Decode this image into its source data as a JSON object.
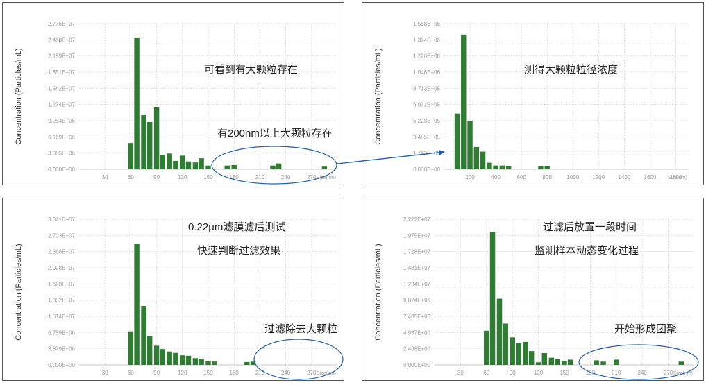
{
  "chart_data": [
    {
      "type": "bar",
      "ylabel": "Concentration (Particles/mL)",
      "x_unit_label": "Size(nm)",
      "x_ticks": [
        "30",
        "60",
        "90",
        "120",
        "150",
        "180",
        "210",
        "240",
        "270"
      ],
      "x_range": [
        0,
        300
      ],
      "y_ticks": [
        "0.000E+00",
        "3.085E+06",
        "6.169E+06",
        "9.254E+06",
        "1.234E+07",
        "1.542E+07",
        "1.851E+07",
        "2.159E+07",
        "2.468E+07",
        "2.776E+07"
      ],
      "ylim": [
        0,
        27760000
      ],
      "bar_width_nm": 6,
      "x": [
        60,
        67,
        75,
        82,
        90,
        97,
        105,
        112,
        120,
        127,
        135,
        142,
        150,
        157,
        165,
        172,
        180,
        187,
        195,
        202,
        210,
        217,
        225,
        232,
        240,
        247,
        255,
        262,
        270,
        277,
        285
      ],
      "values": [
        5000000,
        25000000,
        10300000,
        9000000,
        11900000,
        2700000,
        3000000,
        1600000,
        2600000,
        1500000,
        1300000,
        2100000,
        700000,
        0,
        0,
        700000,
        800000,
        0,
        0,
        0,
        0,
        0,
        700000,
        1100000,
        0,
        0,
        0,
        0,
        0,
        0,
        500000
      ],
      "annotations": [
        "可看到有大颗粒存在",
        "有200nm以上大颗粒存在"
      ]
    },
    {
      "type": "bar",
      "ylabel": "Concentration (Particles/mL)",
      "x_unit_label": "Size(nm)",
      "x_ticks": [
        "200",
        "400",
        "600",
        "800",
        "1000",
        "1200",
        "1400",
        "1600",
        "1800"
      ],
      "x_range": [
        0,
        1900
      ],
      "y_ticks": [
        "0.000E+00",
        "1.743E+05",
        "3.485E+05",
        "5.228E+05",
        "6.971E+05",
        "8.713E+05",
        "1.046E+06",
        "1.220E+06",
        "1.394E+06",
        "1.568E+06"
      ],
      "ylim": [
        0,
        1568000
      ],
      "bar_width_nm": 40,
      "x": [
        100,
        150,
        200,
        250,
        300,
        350,
        400,
        450,
        500,
        550,
        600,
        650,
        700,
        750,
        800
      ],
      "values": [
        600000,
        1450000,
        520000,
        240000,
        190000,
        70000,
        40000,
        40000,
        30000,
        0,
        0,
        0,
        0,
        30000,
        30000
      ],
      "annotations": [
        "测得大颗粒粒径浓度"
      ]
    },
    {
      "type": "bar",
      "ylabel": "Concentration (Particles/mL)",
      "x_unit_label": "Size(nm)",
      "x_ticks": [
        "30",
        "60",
        "90",
        "120",
        "150",
        "180",
        "210",
        "240",
        "270"
      ],
      "x_range": [
        0,
        300
      ],
      "y_ticks": [
        "0.000E+00",
        "3.379E+06",
        "6.759E+06",
        "1.014E+07",
        "1.352E+07",
        "1.690E+07",
        "2.028E+07",
        "2.366E+07",
        "2.703E+07",
        "3.041E+07"
      ],
      "ylim": [
        0,
        30410000
      ],
      "bar_width_nm": 6,
      "x": [
        60,
        67,
        75,
        82,
        90,
        97,
        105,
        112,
        120,
        127,
        135,
        142,
        150,
        157,
        165,
        172,
        180,
        187,
        195,
        202,
        210
      ],
      "values": [
        7000000,
        25200000,
        12300000,
        6000000,
        4000000,
        3300000,
        2800000,
        2500000,
        2000000,
        1900000,
        1400000,
        1300000,
        800000,
        700000,
        0,
        0,
        0,
        0,
        600000,
        700000,
        0
      ],
      "annotations": [
        "0.22μm滤膜滤后测试",
        "快速判断过滤效果",
        "过滤除去大颗粒"
      ]
    },
    {
      "type": "bar",
      "ylabel": "Concentration (Particles/mL)",
      "x_unit_label": "Size(nm)",
      "x_ticks": [
        "30",
        "60",
        "90",
        "120",
        "150",
        "180",
        "210",
        "240",
        "270"
      ],
      "x_range": [
        0,
        300
      ],
      "y_ticks": [
        "0.000E+00",
        "2.468E+06",
        "4.937E+06",
        "7.405E+06",
        "9.874E+06",
        "1.234E+07",
        "1.481E+07",
        "1.728E+07",
        "1.975E+07",
        "2.222E+07"
      ],
      "ylim": [
        0,
        22220000
      ],
      "bar_width_nm": 6,
      "x": [
        60,
        67,
        75,
        82,
        90,
        97,
        105,
        112,
        120,
        127,
        135,
        142,
        150,
        157,
        165,
        172,
        180,
        187,
        195,
        202,
        210,
        217,
        225,
        232,
        240,
        247,
        255,
        262,
        270,
        277,
        285
      ],
      "values": [
        5200000,
        20300000,
        10100000,
        6300000,
        4200000,
        3300000,
        3500000,
        2100000,
        400000,
        1800000,
        1100000,
        900000,
        600000,
        800000,
        0,
        0,
        0,
        700000,
        500000,
        0,
        800000,
        0,
        0,
        0,
        0,
        0,
        0,
        0,
        0,
        0,
        500000
      ],
      "annotations": [
        "过滤后放置一段时间",
        "监测样本动态变化过程",
        "开始形成团聚"
      ]
    }
  ]
}
